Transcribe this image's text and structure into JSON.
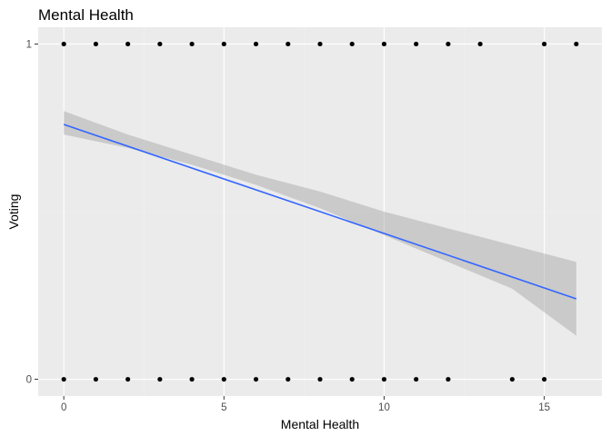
{
  "chart_data": {
    "type": "scatter",
    "title": "Mental Health",
    "xlabel": "Mental Health",
    "ylabel": "Voting",
    "xlim": [
      -0.8,
      16.8
    ],
    "ylim": [
      -0.05,
      1.05
    ],
    "x_ticks": [
      0,
      5,
      10,
      15
    ],
    "x_tick_labels": [
      "0",
      "5",
      "10",
      "15"
    ],
    "y_ticks": [
      0,
      1
    ],
    "y_tick_labels": [
      "0",
      "1"
    ],
    "grid": true,
    "legend": "none",
    "points": [
      {
        "x": 0,
        "y": 1
      },
      {
        "x": 1,
        "y": 1
      },
      {
        "x": 2,
        "y": 1
      },
      {
        "x": 3,
        "y": 1
      },
      {
        "x": 4,
        "y": 1
      },
      {
        "x": 5,
        "y": 1
      },
      {
        "x": 6,
        "y": 1
      },
      {
        "x": 7,
        "y": 1
      },
      {
        "x": 8,
        "y": 1
      },
      {
        "x": 9,
        "y": 1
      },
      {
        "x": 10,
        "y": 1
      },
      {
        "x": 11,
        "y": 1
      },
      {
        "x": 12,
        "y": 1
      },
      {
        "x": 13,
        "y": 1
      },
      {
        "x": 15,
        "y": 1
      },
      {
        "x": 16,
        "y": 1
      },
      {
        "x": 0,
        "y": 0
      },
      {
        "x": 1,
        "y": 0
      },
      {
        "x": 2,
        "y": 0
      },
      {
        "x": 3,
        "y": 0
      },
      {
        "x": 4,
        "y": 0
      },
      {
        "x": 5,
        "y": 0
      },
      {
        "x": 6,
        "y": 0
      },
      {
        "x": 7,
        "y": 0
      },
      {
        "x": 8,
        "y": 0
      },
      {
        "x": 9,
        "y": 0
      },
      {
        "x": 10,
        "y": 0
      },
      {
        "x": 11,
        "y": 0
      },
      {
        "x": 12,
        "y": 0
      },
      {
        "x": 14,
        "y": 0
      },
      {
        "x": 15,
        "y": 0
      }
    ],
    "fit_line": {
      "method": "linear",
      "x": [
        0,
        16
      ],
      "y": [
        0.76,
        0.24
      ]
    },
    "confidence_band": {
      "x": [
        0,
        2,
        4,
        6,
        8,
        10,
        12,
        14,
        16
      ],
      "lower": [
        0.73,
        0.69,
        0.64,
        0.58,
        0.51,
        0.43,
        0.35,
        0.27,
        0.13
      ],
      "upper": [
        0.8,
        0.73,
        0.67,
        0.61,
        0.56,
        0.5,
        0.45,
        0.4,
        0.35
      ]
    },
    "colors": {
      "panel_background": "#ebebeb",
      "grid_major": "#ffffff",
      "grid_minor": "#f2f2f2",
      "points": "#000000",
      "fit_line": "#3366ff",
      "confidence_band": "#999999"
    }
  }
}
